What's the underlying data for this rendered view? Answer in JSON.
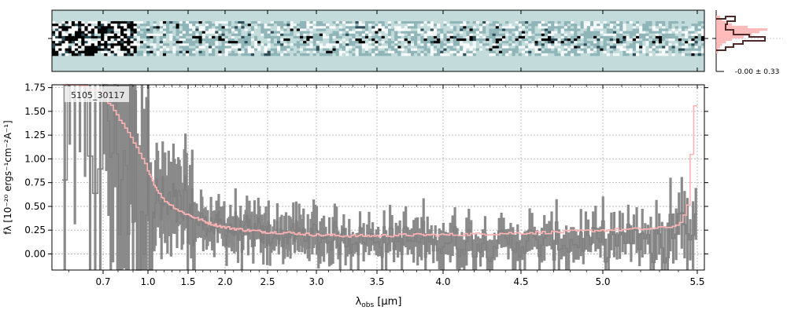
{
  "chart_data": [
    {
      "type": "heatmap",
      "panel": "2d-spectrum",
      "description_label": "",
      "background_color": "#c3dcdb",
      "colormap": [
        "#000000",
        "#2f4f5a",
        "#8fb5b8",
        "#c3dcdb",
        "#f2f8f8",
        "#ffffff"
      ]
    },
    {
      "type": "line",
      "panel": "1d-spectrum",
      "object_id": "5105_30117",
      "xlabel_prefix": "λ",
      "xlabel_sub": "obs",
      "xlabel_suffix": " [μm]",
      "ylabel": "fλ [10⁻²⁰ ergs⁻¹cm⁻²A⁻¹]",
      "x_scale": "sqrt-like (non-linear)",
      "xlim": [
        0.55,
        5.52
      ],
      "ylim": [
        -0.17,
        1.78
      ],
      "x_ticks": [
        {
          "value": 0.7,
          "label": "0.7"
        },
        {
          "value": 1.0,
          "label": "1.0"
        },
        {
          "value": 1.5,
          "label": "1.5"
        },
        {
          "value": 2.0,
          "label": "2.0"
        },
        {
          "value": 2.5,
          "label": "2.5"
        },
        {
          "value": 3.0,
          "label": "3.0"
        },
        {
          "value": 3.5,
          "label": "3.5"
        },
        {
          "value": 4.0,
          "label": "4.0"
        },
        {
          "value": 4.5,
          "label": "4.5"
        },
        {
          "value": 5.0,
          "label": "5.0"
        },
        {
          "value": 5.5,
          "label": "5.5"
        }
      ],
      "y_ticks": [
        {
          "value": 0.0,
          "label": "0.00"
        },
        {
          "value": 0.25,
          "label": "0.25"
        },
        {
          "value": 0.5,
          "label": "0.50"
        },
        {
          "value": 0.75,
          "label": "0.75"
        },
        {
          "value": 1.0,
          "label": "1.00"
        },
        {
          "value": 1.25,
          "label": "1.25"
        },
        {
          "value": 1.5,
          "label": "1.50"
        },
        {
          "value": 1.75,
          "label": "1.75"
        }
      ],
      "grid": true,
      "series": [
        {
          "role": "data",
          "style": "step with error bars",
          "color": "#7f7f7f",
          "x": [
            0.6,
            0.7,
            0.8,
            0.9,
            1.0,
            1.2,
            1.4,
            1.6,
            1.8,
            2.0,
            2.25,
            2.5,
            2.75,
            3.0,
            3.25,
            3.5,
            3.75,
            4.0,
            4.25,
            4.5,
            4.75,
            5.0,
            5.2,
            5.4,
            5.5
          ],
          "y": [
            1.3,
            1.6,
            1.2,
            0.9,
            0.6,
            0.5,
            0.45,
            0.35,
            0.3,
            0.28,
            0.22,
            0.2,
            0.2,
            0.18,
            0.16,
            0.15,
            0.14,
            0.13,
            0.12,
            0.12,
            0.12,
            0.13,
            0.15,
            0.25,
            0.35
          ]
        },
        {
          "role": "model",
          "style": "step",
          "color": "#ffb3b3",
          "x": [
            0.6,
            0.7,
            0.8,
            0.9,
            1.0,
            1.1,
            1.2,
            1.4,
            1.6,
            1.8,
            2.0,
            2.25,
            2.5,
            2.75,
            3.0,
            3.25,
            3.5,
            3.75,
            4.0,
            4.25,
            4.5,
            4.75,
            5.0,
            5.2,
            5.3,
            5.4,
            5.45,
            5.5
          ],
          "y": [
            1.8,
            1.7,
            1.45,
            1.2,
            0.9,
            0.7,
            0.57,
            0.45,
            0.38,
            0.32,
            0.28,
            0.25,
            0.23,
            0.22,
            0.2,
            0.19,
            0.19,
            0.2,
            0.2,
            0.21,
            0.22,
            0.23,
            0.25,
            0.26,
            0.27,
            0.3,
            0.45,
            1.8
          ]
        }
      ]
    },
    {
      "type": "bar",
      "panel": "cross-dispersion-profile",
      "label": "-0.00 ± 0.33",
      "bar_color": "#ffb3b3",
      "line_color": "#4d2a2a"
    }
  ]
}
